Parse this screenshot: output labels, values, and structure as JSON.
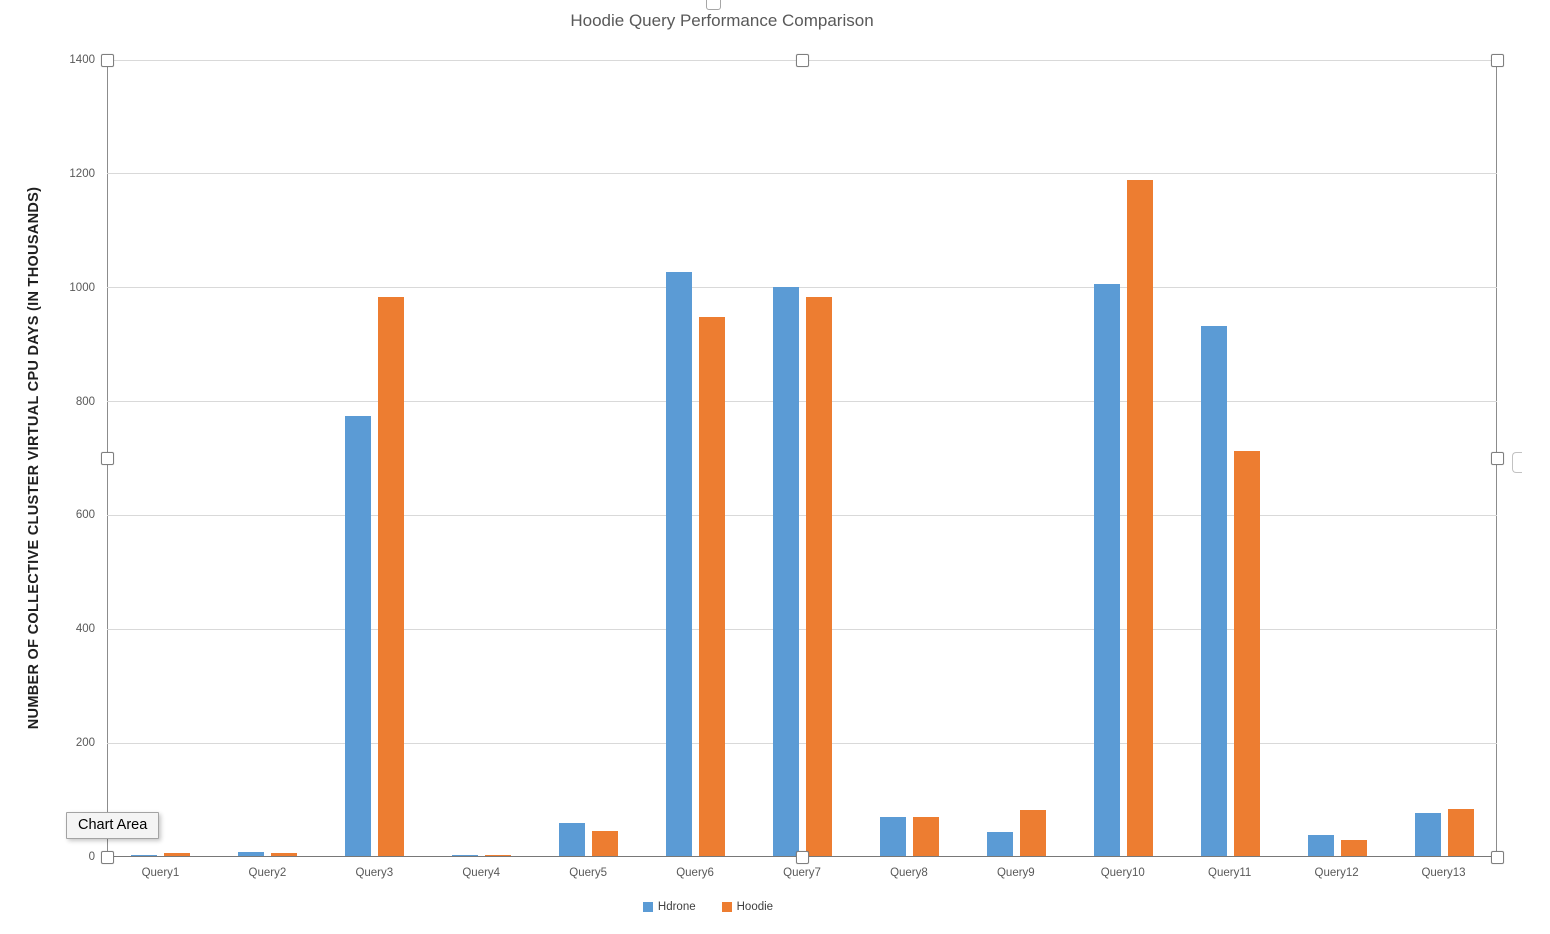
{
  "chart_data": {
    "type": "bar",
    "title": "Hoodie Query Performance Comparison",
    "ylabel": "NUMBER OF COLLECTIVE CLUSTER VIRTUAL CPU DAYS (IN THOUSANDS)",
    "xlabel": "",
    "categories": [
      "Query1",
      "Query2",
      "Query3",
      "Query4",
      "Query5",
      "Query6",
      "Query7",
      "Query8",
      "Query9",
      "Query10",
      "Query11",
      "Query12",
      "Query13"
    ],
    "series": [
      {
        "name": "Hdrone",
        "color": "#5B9BD5",
        "values": [
          4,
          8,
          775,
          3,
          60,
          1027,
          1002,
          70,
          44,
          1006,
          932,
          39,
          77
        ]
      },
      {
        "name": "Hoodie",
        "color": "#ED7D31",
        "values": [
          7,
          7,
          983,
          4,
          46,
          948,
          983,
          71,
          82,
          1190,
          714,
          30,
          84
        ]
      }
    ],
    "ylim": [
      0,
      1400
    ],
    "y_ticks": [
      0,
      200,
      400,
      600,
      800,
      1000,
      1200,
      1400
    ],
    "grid": true,
    "legend_position": "bottom"
  },
  "selection": {
    "tooltip_label": "Chart Area"
  },
  "colors": {
    "title": "#595959",
    "tick_labels": "#595959",
    "gridline": "#D9D9D9",
    "axis_line": "#787878",
    "selection_frame": "#8C8C8C"
  }
}
